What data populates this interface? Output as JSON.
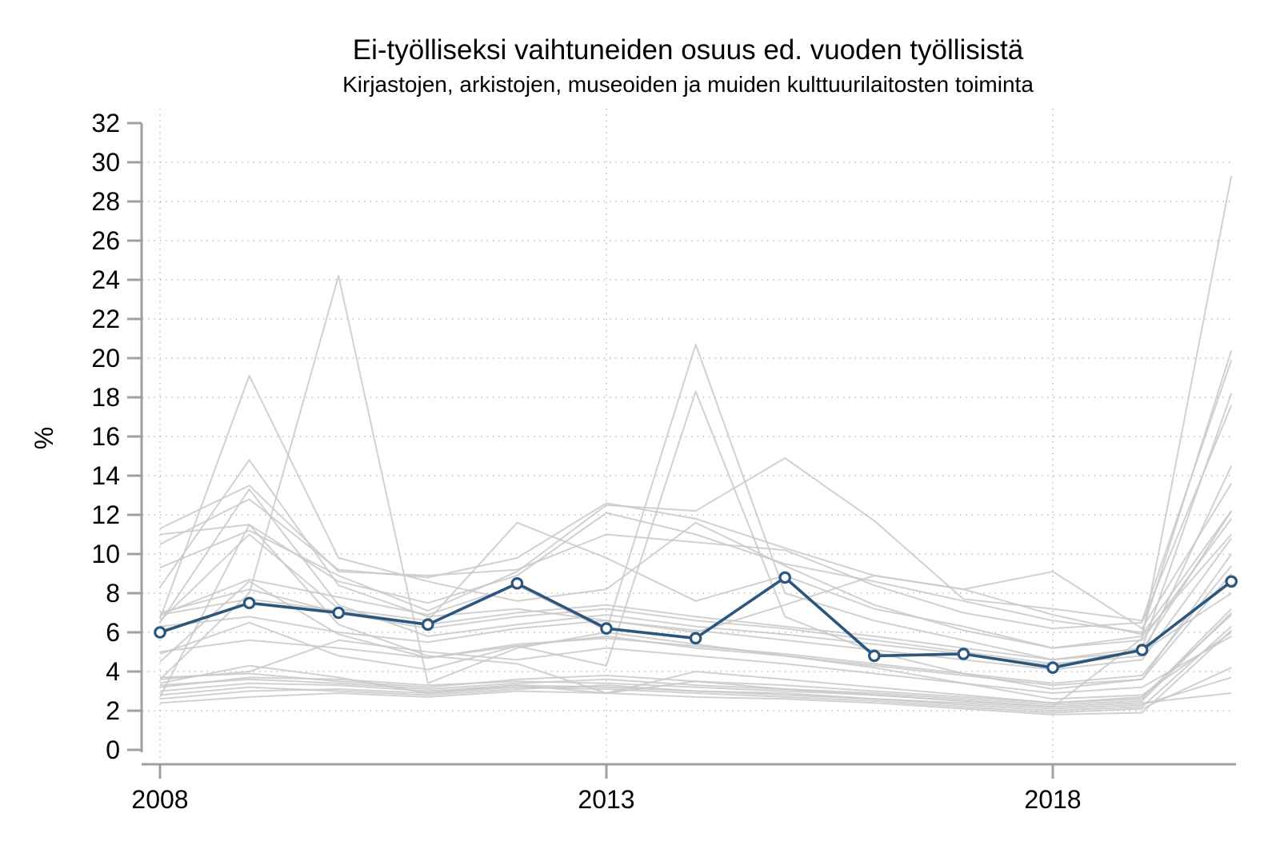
{
  "chart_data": {
    "type": "line",
    "title": "Ei-työlliseksi vaihtuneiden osuus ed. vuoden työllisistä",
    "subtitle": "Kirjastojen, arkistojen, museoiden ja muiden kulttuurilaitosten toiminta",
    "ylabel": "%",
    "xlabel": "",
    "x": [
      2008,
      2009,
      2010,
      2011,
      2012,
      2013,
      2014,
      2015,
      2016,
      2017,
      2018,
      2019,
      2020
    ],
    "x_tick_labels": [
      "2008",
      "2013",
      "2018"
    ],
    "x_tick_years": [
      2008,
      2013,
      2018
    ],
    "ylim": [
      0,
      32
    ],
    "y_ticks": [
      0,
      2,
      4,
      6,
      8,
      10,
      12,
      14,
      16,
      18,
      20,
      22,
      24,
      26,
      28,
      30,
      32
    ],
    "grid": "dotted horizontal at even values 2-30, dotted vertical at labeled years",
    "legend_position": "none",
    "colors": {
      "main": "#2b577f",
      "background_line": "#c9c9c9",
      "axis": "#a0a0a0",
      "grid": "#ababab",
      "marker_fill": "#ffffff"
    },
    "main_series": {
      "name": "Kirjastojen, arkistojen, museoiden ja muiden kulttuurilaitosten toiminta",
      "values": [
        6.0,
        7.5,
        7.0,
        6.4,
        8.5,
        6.2,
        5.7,
        8.8,
        4.8,
        4.9,
        4.2,
        5.1,
        8.6
      ]
    },
    "background_series": [
      {
        "values": [
          3.6,
          8.0,
          24.2,
          3.4,
          5.2,
          6.0,
          5.4,
          4.8,
          4.2,
          3.4,
          2.6,
          2.8,
          6.0
        ]
      },
      {
        "values": [
          6.7,
          19.1,
          9.8,
          8.6,
          7.6,
          8.2,
          11.6,
          9.4,
          7.4,
          6.1,
          5.2,
          5.6,
          11.8
        ]
      },
      {
        "values": [
          8.3,
          14.8,
          8.4,
          6.8,
          7.2,
          6.6,
          6.1,
          5.6,
          5.1,
          4.6,
          4.1,
          4.6,
          10.8
        ]
      },
      {
        "values": [
          6.5,
          13.3,
          7.4,
          5.8,
          6.4,
          6.9,
          6.3,
          5.9,
          5.4,
          4.9,
          4.3,
          5.1,
          12.2
        ]
      },
      {
        "values": [
          4.9,
          6.5,
          4.8,
          4.1,
          5.3,
          4.3,
          18.3,
          6.8,
          5.0,
          3.9,
          3.1,
          3.6,
          9.0
        ]
      },
      {
        "values": [
          6.9,
          8.7,
          7.8,
          6.9,
          8.4,
          6.1,
          20.7,
          8.0,
          6.6,
          5.6,
          4.6,
          5.2,
          18.2
        ]
      },
      {
        "values": [
          9.3,
          11.2,
          8.9,
          7.1,
          9.1,
          12.5,
          12.2,
          14.9,
          11.7,
          7.7,
          7.2,
          6.6,
          19.9
        ]
      },
      {
        "values": [
          3.4,
          4.3,
          3.7,
          2.9,
          3.3,
          2.9,
          3.5,
          3.1,
          2.8,
          2.5,
          2.2,
          5.7,
          29.3
        ]
      },
      {
        "values": [
          10.5,
          12.8,
          9.2,
          8.8,
          9.8,
          12.6,
          11.8,
          10.3,
          8.9,
          8.2,
          9.1,
          6.2,
          13.6
        ]
      },
      {
        "values": [
          6.6,
          11.0,
          7.2,
          6.6,
          11.6,
          9.8,
          7.6,
          8.9,
          7.2,
          6.3,
          5.2,
          5.8,
          11.0
        ]
      },
      {
        "values": [
          11.3,
          13.5,
          9.1,
          8.9,
          9.2,
          11.0,
          10.6,
          10.2,
          8.4,
          7.0,
          6.2,
          6.5,
          17.6
        ]
      },
      {
        "values": [
          11.0,
          11.5,
          8.6,
          7.5,
          8.9,
          12.1,
          11.0,
          9.5,
          8.6,
          7.6,
          6.6,
          6.0,
          20.4
        ]
      },
      {
        "values": [
          7.0,
          8.2,
          7.0,
          6.2,
          6.8,
          7.2,
          6.6,
          6.2,
          5.6,
          5.0,
          4.4,
          4.8,
          14.5
        ]
      },
      {
        "values": [
          6.3,
          6.8,
          6.0,
          5.5,
          6.2,
          6.6,
          6.0,
          7.4,
          8.9,
          8.2,
          6.9,
          5.9,
          12.2
        ]
      },
      {
        "values": [
          4.5,
          8.6,
          5.9,
          4.7,
          5.3,
          5.8,
          5.2,
          4.8,
          4.3,
          3.8,
          3.3,
          3.6,
          10.0
        ]
      },
      {
        "values": [
          3.7,
          3.9,
          3.5,
          3.2,
          3.6,
          3.8,
          3.5,
          3.3,
          3.0,
          2.7,
          2.4,
          2.6,
          7.2
        ]
      },
      {
        "values": [
          3.3,
          3.6,
          3.4,
          3.1,
          3.4,
          3.6,
          3.3,
          3.1,
          2.9,
          2.6,
          2.3,
          2.5,
          7.0
        ]
      },
      {
        "values": [
          2.8,
          3.2,
          3.0,
          2.8,
          3.1,
          3.3,
          3.0,
          2.8,
          2.6,
          2.3,
          2.0,
          2.2,
          6.3
        ]
      },
      {
        "values": [
          2.4,
          2.7,
          2.9,
          2.7,
          3.0,
          2.9,
          2.7,
          2.6,
          2.4,
          2.1,
          1.8,
          1.9,
          6.1
        ]
      },
      {
        "values": [
          2.6,
          3.0,
          3.1,
          2.9,
          3.2,
          3.1,
          2.9,
          2.7,
          2.5,
          2.2,
          1.9,
          2.1,
          4.2
        ]
      },
      {
        "values": [
          3.0,
          3.4,
          3.3,
          3.0,
          3.3,
          3.2,
          3.0,
          2.9,
          2.6,
          2.4,
          2.1,
          2.3,
          3.7
        ]
      },
      {
        "values": [
          3.2,
          3.7,
          3.6,
          3.3,
          3.5,
          3.4,
          3.2,
          3.0,
          2.8,
          2.5,
          2.2,
          2.4,
          2.9
        ]
      },
      {
        "values": [
          6.9,
          7.7,
          7.1,
          6.4,
          7.0,
          7.4,
          6.8,
          6.3,
          5.8,
          5.2,
          4.6,
          5.0,
          8.0
        ]
      },
      {
        "values": [
          5.0,
          5.6,
          5.2,
          4.7,
          5.4,
          5.7,
          5.3,
          4.9,
          4.4,
          3.9,
          3.4,
          3.8,
          9.4
        ]
      },
      {
        "values": [
          3.6,
          4.0,
          5.6,
          5.0,
          4.6,
          5.2,
          4.8,
          4.4,
          3.9,
          3.4,
          2.9,
          3.2,
          5.8
        ]
      },
      {
        "values": [
          2.7,
          11.5,
          6.4,
          4.8,
          4.4,
          2.9,
          4.0,
          3.6,
          3.2,
          2.8,
          2.4,
          2.7,
          6.9
        ]
      }
    ]
  }
}
